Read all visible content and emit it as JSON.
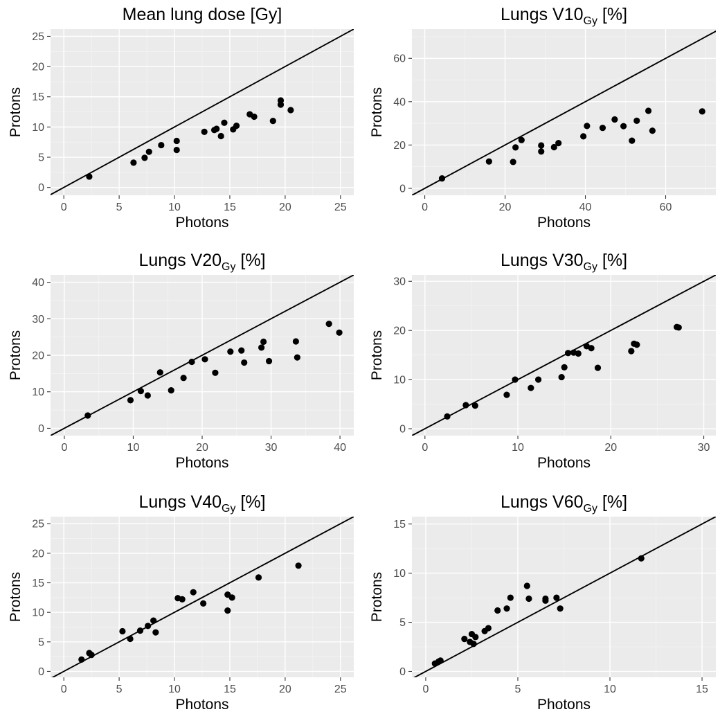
{
  "chart_data": [
    {
      "type": "scatter",
      "title_main": "Mean lung dose [Gy]",
      "title_sub": "",
      "title_tail": "",
      "xlabel": "Photons",
      "ylabel": "Protons",
      "xlim": [
        -1.2,
        26.2
      ],
      "ylim": [
        -1.3,
        26.2
      ],
      "xticks": [
        0,
        5,
        10,
        15,
        20,
        25
      ],
      "yticks": [
        0,
        5,
        10,
        15,
        20,
        25
      ],
      "reference_line": "y = x",
      "points": [
        [
          2.3,
          1.8
        ],
        [
          6.3,
          4.1
        ],
        [
          7.3,
          4.9
        ],
        [
          7.7,
          5.9
        ],
        [
          8.8,
          7.0
        ],
        [
          10.2,
          6.2
        ],
        [
          10.2,
          7.7
        ],
        [
          12.7,
          9.2
        ],
        [
          13.6,
          9.5
        ],
        [
          13.8,
          9.7
        ],
        [
          14.2,
          8.5
        ],
        [
          14.5,
          10.7
        ],
        [
          15.3,
          9.6
        ],
        [
          15.6,
          10.2
        ],
        [
          16.8,
          12.1
        ],
        [
          17.2,
          11.7
        ],
        [
          18.9,
          11.0
        ],
        [
          19.6,
          14.4
        ],
        [
          19.6,
          13.7
        ],
        [
          20.5,
          12.8
        ]
      ]
    },
    {
      "type": "scatter",
      "title_main": "Lungs V10",
      "title_sub": "Gy",
      "title_tail": " [%]",
      "xlabel": "Photons",
      "ylabel": "Protons",
      "xlim": [
        -3.2,
        72.5
      ],
      "ylim": [
        -3.2,
        73.5
      ],
      "xticks": [
        0,
        20,
        40,
        60
      ],
      "yticks": [
        0,
        20,
        40,
        60
      ],
      "reference_line": "y = x",
      "points": [
        [
          4.3,
          4.6
        ],
        [
          16.0,
          12.4
        ],
        [
          22.0,
          12.2
        ],
        [
          22.6,
          18.9
        ],
        [
          24.1,
          22.3
        ],
        [
          29.0,
          19.8
        ],
        [
          29.0,
          17.0
        ],
        [
          32.2,
          19.0
        ],
        [
          33.3,
          20.9
        ],
        [
          39.5,
          24.0
        ],
        [
          40.4,
          28.8
        ],
        [
          44.3,
          27.9
        ],
        [
          47.3,
          31.8
        ],
        [
          49.5,
          28.7
        ],
        [
          51.6,
          22.0
        ],
        [
          52.8,
          31.2
        ],
        [
          55.7,
          35.8
        ],
        [
          56.7,
          26.6
        ],
        [
          69.1,
          35.5
        ]
      ]
    },
    {
      "type": "scatter",
      "title_main": "Lungs V20",
      "title_sub": "Gy",
      "title_tail": " [%]",
      "xlabel": "Photons",
      "ylabel": "Protons",
      "xlim": [
        -2.0,
        42.0
      ],
      "ylim": [
        -2.0,
        42.0
      ],
      "xticks": [
        0,
        10,
        20,
        30,
        40
      ],
      "yticks": [
        0,
        10,
        20,
        30,
        40
      ],
      "reference_line": "y = x",
      "points": [
        [
          3.4,
          3.5
        ],
        [
          9.6,
          7.7
        ],
        [
          11.1,
          10.2
        ],
        [
          12.1,
          9.0
        ],
        [
          13.9,
          15.3
        ],
        [
          15.5,
          10.4
        ],
        [
          17.3,
          13.8
        ],
        [
          18.5,
          18.2
        ],
        [
          20.4,
          18.9
        ],
        [
          21.9,
          15.2
        ],
        [
          24.1,
          21.0
        ],
        [
          25.7,
          21.3
        ],
        [
          26.1,
          18.0
        ],
        [
          28.6,
          22.1
        ],
        [
          28.9,
          23.7
        ],
        [
          29.7,
          18.4
        ],
        [
          33.6,
          23.8
        ],
        [
          33.8,
          19.4
        ],
        [
          38.4,
          28.6
        ],
        [
          39.9,
          26.2
        ]
      ]
    },
    {
      "type": "scatter",
      "title_main": "Lungs V30",
      "title_sub": "Gy",
      "title_tail": " [%]",
      "xlabel": "Photons",
      "ylabel": "Protons",
      "xlim": [
        -1.4,
        31.3
      ],
      "ylim": [
        -1.4,
        31.3
      ],
      "xticks": [
        0,
        10,
        20,
        30
      ],
      "yticks": [
        0,
        10,
        20,
        30
      ],
      "reference_line": "y = x",
      "points": [
        [
          2.4,
          2.5
        ],
        [
          4.4,
          4.8
        ],
        [
          5.4,
          4.7
        ],
        [
          8.8,
          6.9
        ],
        [
          9.7,
          10.0
        ],
        [
          11.4,
          8.3
        ],
        [
          12.2,
          10.0
        ],
        [
          14.7,
          10.5
        ],
        [
          15.0,
          12.5
        ],
        [
          15.4,
          15.4
        ],
        [
          16.0,
          15.5
        ],
        [
          16.5,
          15.3
        ],
        [
          17.4,
          16.8
        ],
        [
          17.9,
          16.4
        ],
        [
          18.6,
          12.4
        ],
        [
          22.2,
          15.8
        ],
        [
          22.5,
          17.3
        ],
        [
          22.8,
          17.1
        ],
        [
          27.1,
          20.7
        ],
        [
          27.3,
          20.6
        ]
      ]
    },
    {
      "type": "scatter",
      "title_main": "Lungs V40",
      "title_sub": "Gy",
      "title_tail": " [%]",
      "xlabel": "Photons",
      "ylabel": "Protons",
      "xlim": [
        -1.2,
        26.2
      ],
      "ylim": [
        -1.0,
        26.2
      ],
      "xticks": [
        0,
        5,
        10,
        15,
        20,
        25
      ],
      "yticks": [
        0,
        5,
        10,
        15,
        20,
        25
      ],
      "reference_line": "y = x",
      "points": [
        [
          1.6,
          2.0
        ],
        [
          2.3,
          3.1
        ],
        [
          2.5,
          2.8
        ],
        [
          5.3,
          6.8
        ],
        [
          6.0,
          5.5
        ],
        [
          6.9,
          6.9
        ],
        [
          7.6,
          7.7
        ],
        [
          8.1,
          8.6
        ],
        [
          8.3,
          6.6
        ],
        [
          10.3,
          12.4
        ],
        [
          10.7,
          12.2
        ],
        [
          11.7,
          13.4
        ],
        [
          12.6,
          11.5
        ],
        [
          14.8,
          13.0
        ],
        [
          14.8,
          10.3
        ],
        [
          15.2,
          12.5
        ],
        [
          17.6,
          15.9
        ],
        [
          21.2,
          17.9
        ]
      ]
    },
    {
      "type": "scatter",
      "title_main": "Lungs V60",
      "title_sub": "Gy",
      "title_tail": " [%]",
      "xlabel": "Photons",
      "ylabel": "Protons",
      "xlim": [
        -0.75,
        15.75
      ],
      "ylim": [
        -0.6,
        15.75
      ],
      "xticks": [
        0,
        5,
        10,
        15
      ],
      "yticks": [
        0,
        5,
        10,
        15
      ],
      "reference_line": "y = x",
      "points": [
        [
          0.5,
          0.8
        ],
        [
          0.7,
          1.0
        ],
        [
          0.8,
          1.1
        ],
        [
          2.1,
          3.3
        ],
        [
          2.4,
          3.0
        ],
        [
          2.5,
          3.8
        ],
        [
          2.6,
          2.8
        ],
        [
          2.7,
          3.5
        ],
        [
          3.2,
          4.1
        ],
        [
          3.4,
          4.4
        ],
        [
          3.9,
          6.2
        ],
        [
          4.4,
          6.4
        ],
        [
          4.6,
          7.5
        ],
        [
          5.5,
          8.7
        ],
        [
          5.6,
          7.4
        ],
        [
          6.5,
          7.4
        ],
        [
          6.5,
          7.2
        ],
        [
          7.1,
          7.5
        ],
        [
          7.3,
          6.4
        ],
        [
          11.7,
          11.5
        ]
      ]
    }
  ]
}
